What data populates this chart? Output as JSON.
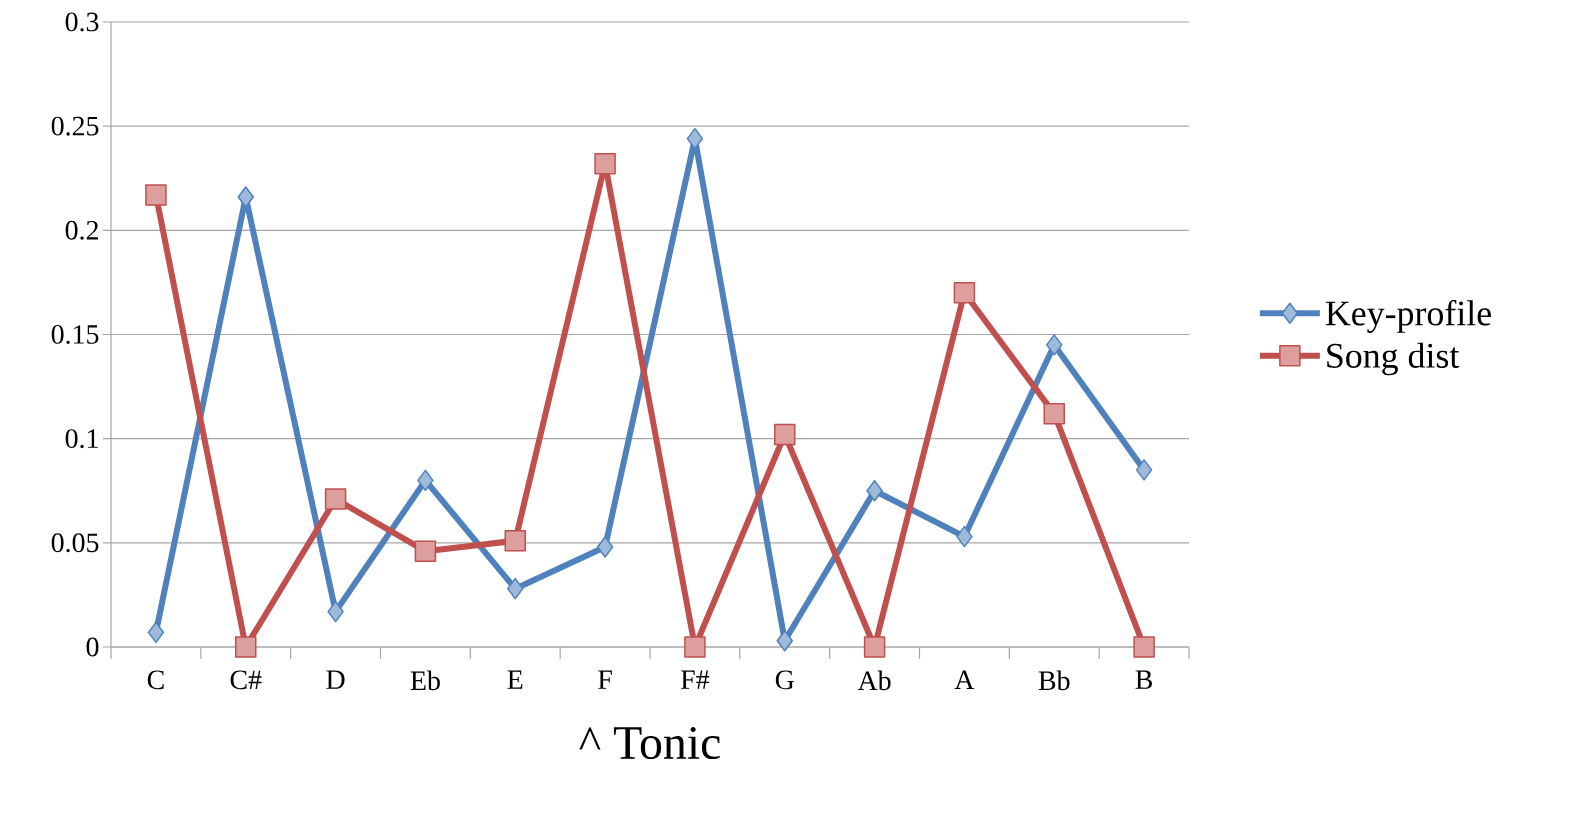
{
  "chart_data": {
    "type": "line",
    "xlabel": "^ Tonic",
    "categories": [
      "C",
      "C#",
      "D",
      "Eb",
      "E",
      "F",
      "F#",
      "G",
      "Ab",
      "A",
      "Bb",
      "B"
    ],
    "series": [
      {
        "name": "Key-profile",
        "color": "#4f81bd",
        "marker": "diamond",
        "values": [
          0.007,
          0.216,
          0.017,
          0.08,
          0.028,
          0.048,
          0.244,
          0.003,
          0.075,
          0.053,
          0.145,
          0.085
        ]
      },
      {
        "name": "Song dist",
        "color": "#c0504d",
        "marker": "square",
        "values": [
          0.217,
          0,
          0.071,
          0.046,
          0.051,
          0.232,
          0,
          0.102,
          0,
          0.17,
          0.112,
          0
        ]
      }
    ],
    "ylim": [
      0,
      0.3
    ],
    "yticks": [
      0,
      0.05,
      0.1,
      0.15,
      0.2,
      0.25,
      0.3
    ],
    "grid": "y",
    "legend": "right",
    "line_style": "solid"
  }
}
